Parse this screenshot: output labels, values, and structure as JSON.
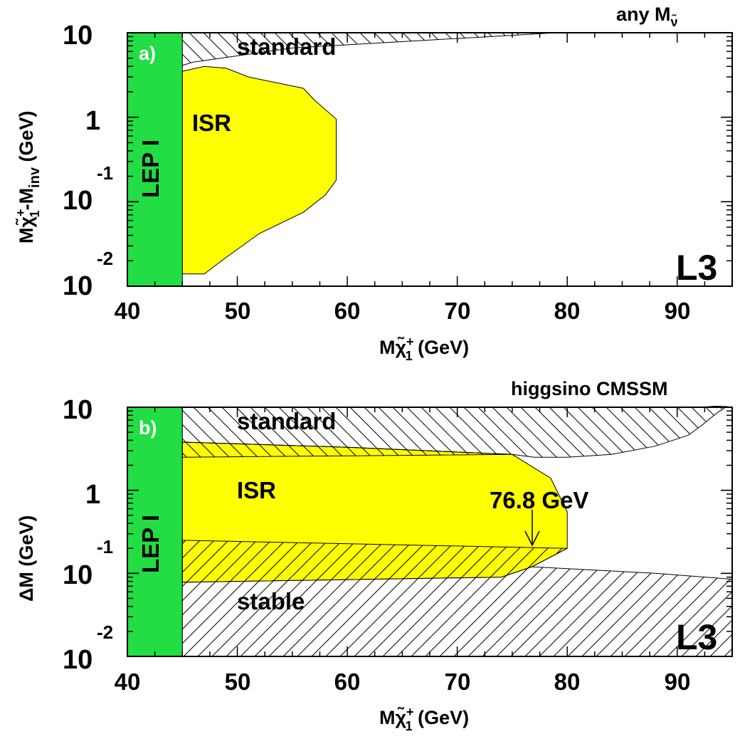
{
  "chart_data": [
    {
      "type": "area",
      "panel_label": "a)",
      "top_right_label": "any M",
      "top_right_label_sub": "ν̃",
      "experiment_label": "L3",
      "ylabel_prefix": "M",
      "ylabel_chi": "χ̃",
      "ylabel_sup": "+",
      "ylabel_sub": "1",
      "ylabel_mid": "-M",
      "ylabel_inv": "inv",
      "ylabel_unit": " (GeV)",
      "xlabel_prefix": "M",
      "xlabel_chi": "χ̃",
      "xlabel_sup": "+",
      "xlabel_sub": "1",
      "xlabel_unit": " (GeV)",
      "xlim": [
        40,
        95
      ],
      "ylim": [
        0.01,
        10
      ],
      "yscale": "log",
      "xticks": [
        "40",
        "50",
        "60",
        "70",
        "80",
        "90"
      ],
      "yticks": [
        {
          "base": "10",
          "exp": ""
        },
        {
          "base": "1",
          "exp": ""
        },
        {
          "base": "10",
          "exp": "-1"
        },
        {
          "base": "10",
          "exp": "-2"
        }
      ],
      "regions": [
        {
          "name": "LEP I",
          "fill": "#22dd44",
          "style": "solid",
          "polygon": [
            [
              40,
              10
            ],
            [
              45,
              10
            ],
            [
              45,
              0.01
            ],
            [
              40,
              0.01
            ]
          ]
        },
        {
          "name": "standard",
          "fill": "#ffffff",
          "style": "hatched-backslash",
          "polygon": [
            [
              45,
              10
            ],
            [
              79,
              10
            ],
            [
              55,
              6.6
            ],
            [
              46,
              4.5
            ],
            [
              45,
              4.1
            ]
          ]
        },
        {
          "name": "ISR",
          "fill": "#ffff00",
          "style": "solid",
          "polygon": [
            [
              45,
              3.5
            ],
            [
              47,
              4.0
            ],
            [
              49,
              3.8
            ],
            [
              51,
              3.0
            ],
            [
              56,
              2.2
            ],
            [
              57,
              1.6
            ],
            [
              59,
              0.95
            ],
            [
              59,
              0.18
            ],
            [
              58,
              0.12
            ],
            [
              56,
              0.075
            ],
            [
              52,
              0.042
            ],
            [
              49,
              0.022
            ],
            [
              47,
              0.014
            ],
            [
              45,
              0.014
            ]
          ]
        }
      ]
    },
    {
      "type": "area",
      "panel_label": "b)",
      "top_right_label": "higgsino CMSSM",
      "experiment_label": "L3",
      "ylabel_prefix": "ΔM",
      "ylabel_unit": " (GeV)",
      "xlabel_prefix": "M",
      "xlabel_chi": "χ̃",
      "xlabel_sup": "+",
      "xlabel_sub": "1",
      "xlabel_unit": " (GeV)",
      "annotation": "76.8 GeV",
      "annotation_x": 76.8,
      "xlim": [
        40,
        95
      ],
      "ylim": [
        0.01,
        10
      ],
      "yscale": "log",
      "xticks": [
        "40",
        "50",
        "60",
        "70",
        "80",
        "90"
      ],
      "yticks": [
        {
          "base": "10",
          "exp": ""
        },
        {
          "base": "1",
          "exp": ""
        },
        {
          "base": "10",
          "exp": "-1"
        },
        {
          "base": "10",
          "exp": "-2"
        }
      ],
      "regions": [
        {
          "name": "LEP I",
          "fill": "#22dd44",
          "style": "solid",
          "polygon": [
            [
              40,
              10
            ],
            [
              45,
              10
            ],
            [
              45,
              0.01
            ],
            [
              40,
              0.01
            ]
          ]
        },
        {
          "name": "standard",
          "fill": "#ffffff",
          "style": "hatched-backslash",
          "polygon": [
            [
              45,
              10
            ],
            [
              92,
              10
            ],
            [
              93.5,
              10.3
            ],
            [
              94.5,
              10.2
            ],
            [
              93.6,
              8.5
            ],
            [
              92.2,
              6.0
            ],
            [
              91,
              4.6
            ],
            [
              88,
              3.4
            ],
            [
              84,
              2.7
            ],
            [
              80,
              2.5
            ],
            [
              77,
              2.5
            ],
            [
              75,
              2.7
            ],
            [
              60,
              3.3
            ],
            [
              45,
              3.8
            ]
          ]
        },
        {
          "name": "ISR",
          "fill": "#ffff00",
          "style": "solid",
          "polygon": [
            [
              45,
              3.8
            ],
            [
              60,
              3.3
            ],
            [
              75,
              2.7
            ],
            [
              78.5,
              1.4
            ],
            [
              80,
              0.55
            ],
            [
              80,
              0.2
            ],
            [
              76.8,
              0.12
            ],
            [
              74,
              0.09
            ],
            [
              45,
              0.078
            ]
          ]
        },
        {
          "name": "ISR-overlap-upper",
          "fill": "none",
          "style": "hatched-backslash",
          "polygon": [
            [
              45,
              3.8
            ],
            [
              60,
              3.3
            ],
            [
              75,
              2.7
            ],
            [
              45,
              2.5
            ]
          ]
        },
        {
          "name": "ISR-overlap-lower",
          "fill": "none",
          "style": "hatched-slash",
          "polygon": [
            [
              45,
              0.25
            ],
            [
              80,
              0.2
            ],
            [
              76.8,
              0.12
            ],
            [
              74,
              0.09
            ],
            [
              45,
              0.078
            ]
          ]
        },
        {
          "name": "stable",
          "fill": "#ffffff",
          "style": "hatched-slash",
          "polygon": [
            [
              45,
              0.078
            ],
            [
              74,
              0.09
            ],
            [
              76.8,
              0.12
            ],
            [
              88,
              0.1
            ],
            [
              95,
              0.085
            ],
            [
              95,
              0.01
            ],
            [
              45,
              0.01
            ]
          ]
        }
      ]
    }
  ]
}
